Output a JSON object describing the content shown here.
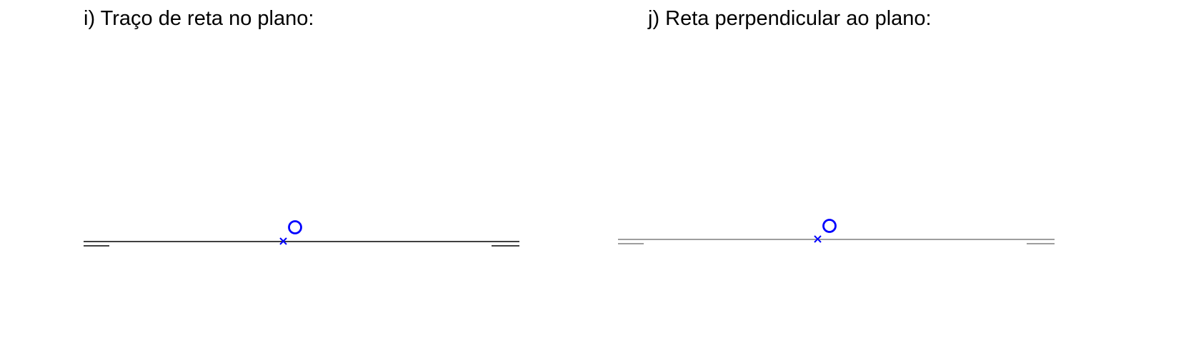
{
  "panels": [
    {
      "title": "i) Traço de reta no plano:",
      "ground_line_color": "#000000",
      "point_color": "#0000ff"
    },
    {
      "title": "j) Reta perpendicular ao plano:",
      "ground_line_color": "#7f7f7f",
      "point_color": "#0000ff"
    }
  ]
}
